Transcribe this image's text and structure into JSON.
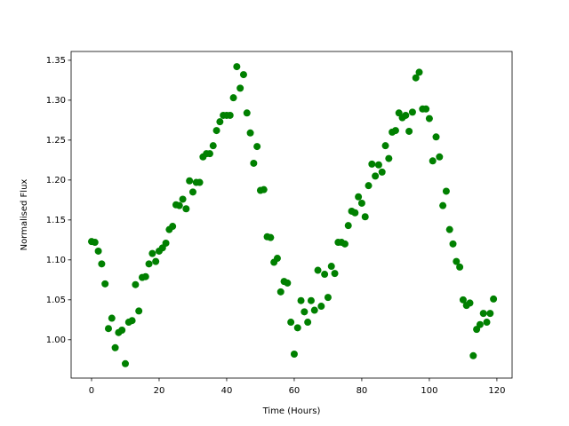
{
  "chart_data": {
    "type": "scatter",
    "xlabel": "Time (Hours)",
    "ylabel": "Normalised Flux",
    "color": "#008000",
    "x": [
      0,
      1,
      2,
      3,
      4,
      5,
      6,
      7,
      8,
      9,
      10,
      11,
      12,
      13,
      14,
      15,
      16,
      17,
      18,
      19,
      20,
      21,
      22,
      23,
      24,
      25,
      26,
      27,
      28,
      29,
      30,
      31,
      32,
      33,
      34,
      35,
      36,
      37,
      38,
      39,
      40,
      41,
      42,
      43,
      44,
      45,
      46,
      47,
      48,
      49,
      50,
      51,
      52,
      53,
      54,
      55,
      56,
      57,
      58,
      59,
      60,
      61,
      62,
      63,
      64,
      65,
      66,
      67,
      68,
      69,
      70,
      71,
      72,
      73,
      74,
      75,
      76,
      77,
      78,
      79,
      80,
      81,
      82,
      83,
      84,
      85,
      86,
      87,
      88,
      89,
      90,
      91,
      92,
      93,
      94,
      95,
      96,
      97,
      98,
      99,
      100,
      101,
      102,
      103,
      104,
      105,
      106,
      107,
      108,
      109,
      110,
      111,
      112,
      113,
      114,
      115,
      116,
      117,
      118,
      119
    ],
    "values": [
      1.123,
      1.122,
      1.111,
      1.095,
      1.07,
      1.014,
      1.027,
      0.99,
      1.009,
      1.012,
      0.97,
      1.022,
      1.024,
      1.069,
      1.036,
      1.078,
      1.079,
      1.095,
      1.108,
      1.098,
      1.111,
      1.115,
      1.121,
      1.138,
      1.142,
      1.169,
      1.168,
      1.176,
      1.164,
      1.199,
      1.185,
      1.197,
      1.197,
      1.229,
      1.233,
      1.233,
      1.243,
      1.262,
      1.273,
      1.281,
      1.281,
      1.281,
      1.303,
      1.342,
      1.315,
      1.332,
      1.284,
      1.259,
      1.221,
      1.242,
      1.187,
      1.188,
      1.129,
      1.128,
      1.097,
      1.102,
      1.06,
      1.073,
      1.071,
      1.022,
      0.982,
      1.015,
      1.049,
      1.035,
      1.022,
      1.049,
      1.037,
      1.087,
      1.042,
      1.082,
      1.053,
      1.092,
      1.083,
      1.122,
      1.122,
      1.12,
      1.143,
      1.161,
      1.159,
      1.179,
      1.171,
      1.154,
      1.193,
      1.22,
      1.205,
      1.219,
      1.21,
      1.243,
      1.227,
      1.26,
      1.262,
      1.284,
      1.278,
      1.281,
      1.261,
      1.285,
      1.328,
      1.335,
      1.289,
      1.289,
      1.277,
      1.224,
      1.254,
      1.229,
      1.168,
      1.186,
      1.138,
      1.12,
      1.098,
      1.091,
      1.05,
      1.043,
      1.046,
      0.98,
      1.013,
      1.019,
      1.033,
      1.022,
      1.033,
      1.051
    ],
    "xlim": [
      -6.05,
      124.5
    ],
    "ylim": [
      0.952,
      1.361
    ],
    "xticks": [
      0,
      20,
      40,
      60,
      80,
      100,
      120
    ],
    "yticks": [
      {
        "value": 1,
        "label": "1.00"
      },
      1.05,
      {
        "value": 1.1,
        "label": "1.10"
      },
      1.15,
      {
        "value": 1.2,
        "label": "1.20"
      },
      1.25,
      {
        "value": 1.3,
        "label": "1.30"
      },
      1.35
    ],
    "grid": false
  }
}
